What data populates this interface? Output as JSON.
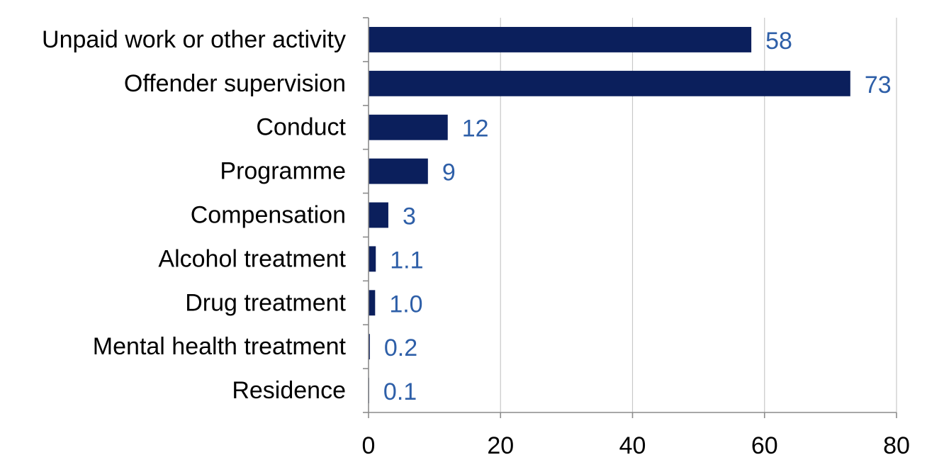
{
  "chart_data": {
    "type": "bar",
    "orientation": "horizontal",
    "title": "",
    "xlabel": "",
    "ylabel": "",
    "xlim": [
      0,
      80
    ],
    "x_ticks": [
      "0",
      "20",
      "40",
      "60",
      "80"
    ],
    "x_tick_values": [
      0,
      20,
      40,
      60,
      80
    ],
    "grid": true,
    "categories": [
      "Unpaid work or other activity",
      "Offender supervision",
      "Conduct",
      "Programme",
      "Compensation",
      "Alcohol treatment",
      "Drug treatment",
      "Mental health treatment",
      "Residence"
    ],
    "values": [
      58,
      73,
      12,
      9,
      3,
      1.1,
      1.0,
      0.2,
      0.1
    ],
    "data_labels": [
      "58",
      "73",
      "12",
      "9",
      "3",
      "1.1",
      "1.0",
      "0.2",
      "0.1"
    ]
  },
  "colors": {
    "bar": "#0b1f5c",
    "data_label": "#2e5fa8",
    "grid": "#c8c8c8",
    "axis": "#8c8c8c"
  }
}
